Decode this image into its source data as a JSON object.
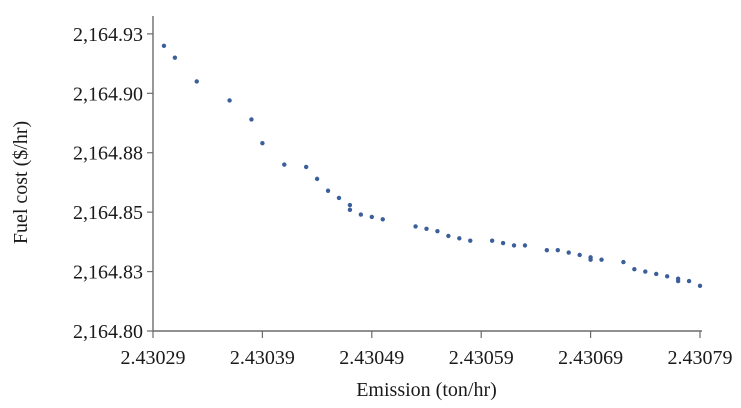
{
  "chart_data": {
    "type": "scatter",
    "title": "",
    "xlabel": "Emission (ton/hr)",
    "ylabel": "Fuel cost ($/hr)",
    "xlim": [
      2.43029,
      2.43079
    ],
    "ylim": [
      2164.8,
      2164.93
    ],
    "x_ticks": [
      2.43029,
      2.43039,
      2.43049,
      2.43059,
      2.43069,
      2.43079
    ],
    "x_tick_labels": [
      "2.43029",
      "2.43039",
      "2.43049",
      "2.43059",
      "2.43069",
      "2.43079"
    ],
    "y_ticks": [
      2164.8,
      2164.825,
      2164.85,
      2164.875,
      2164.9,
      2164.925
    ],
    "y_tick_labels": [
      "2,164.80",
      "2,164.83",
      "2,164.85",
      "2,164.88",
      "2,164.90",
      "2,164.93"
    ],
    "grid": false,
    "legend": "none",
    "marker_color": "#3b5f9a",
    "series": [
      {
        "points": [
          [
            2.4303,
            2164.92
          ],
          [
            2.43031,
            2164.915
          ],
          [
            2.43033,
            2164.905
          ],
          [
            2.43036,
            2164.897
          ],
          [
            2.43038,
            2164.889
          ],
          [
            2.43039,
            2164.879
          ],
          [
            2.43041,
            2164.87
          ],
          [
            2.43043,
            2164.869
          ],
          [
            2.43044,
            2164.864
          ],
          [
            2.43045,
            2164.859
          ],
          [
            2.43046,
            2164.856
          ],
          [
            2.43047,
            2164.853
          ],
          [
            2.43047,
            2164.851
          ],
          [
            2.43048,
            2164.849
          ],
          [
            2.43049,
            2164.848
          ],
          [
            2.4305,
            2164.847
          ],
          [
            2.43053,
            2164.844
          ],
          [
            2.43054,
            2164.843
          ],
          [
            2.43055,
            2164.842
          ],
          [
            2.43056,
            2164.84
          ],
          [
            2.43057,
            2164.839
          ],
          [
            2.43058,
            2164.838
          ],
          [
            2.4306,
            2164.838
          ],
          [
            2.43061,
            2164.837
          ],
          [
            2.43062,
            2164.836
          ],
          [
            2.43063,
            2164.836
          ],
          [
            2.43065,
            2164.834
          ],
          [
            2.43066,
            2164.834
          ],
          [
            2.43067,
            2164.833
          ],
          [
            2.43068,
            2164.832
          ],
          [
            2.43069,
            2164.831
          ],
          [
            2.43069,
            2164.83
          ],
          [
            2.4307,
            2164.83
          ],
          [
            2.43072,
            2164.829
          ],
          [
            2.43073,
            2164.826
          ],
          [
            2.43074,
            2164.825
          ],
          [
            2.43075,
            2164.824
          ],
          [
            2.43076,
            2164.823
          ],
          [
            2.43077,
            2164.822
          ],
          [
            2.43077,
            2164.821
          ],
          [
            2.43078,
            2164.821
          ],
          [
            2.43079,
            2164.819
          ]
        ]
      }
    ]
  }
}
